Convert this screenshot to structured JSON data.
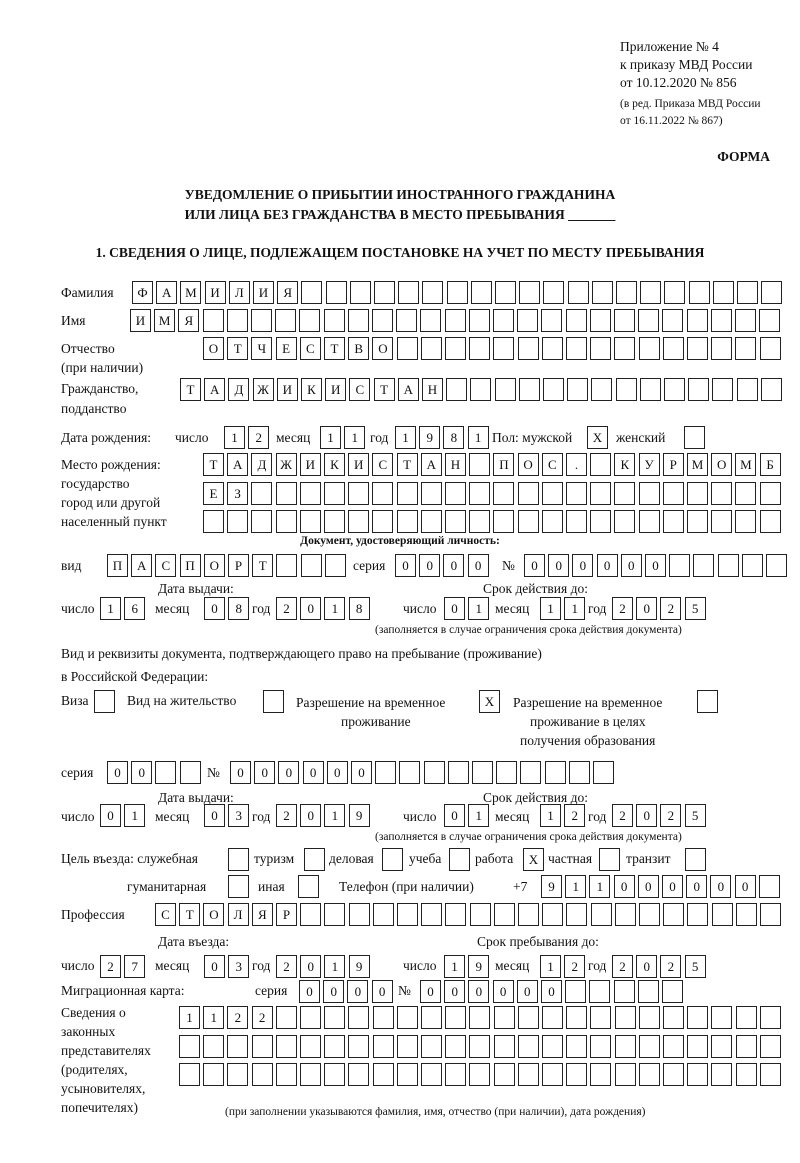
{
  "header": {
    "appendix": [
      "Приложение № 4",
      "к приказу МВД России",
      "от 10.12.2020 № 856"
    ],
    "revision": [
      "(в ред. Приказа МВД России",
      "от 16.11.2022 № 867)"
    ],
    "form_label": "ФОРМА",
    "title_line1": "УВЕДОМЛЕНИЕ О ПРИБЫТИИ ИНОСТРАННОГО ГРАЖДАНИНА",
    "title_line2": "ИЛИ ЛИЦА БЕЗ ГРАЖДАНСТВА В МЕСТО ПРЕБЫВАНИЯ _______"
  },
  "section1": {
    "heading": "1. СВЕДЕНИЯ О ЛИЦЕ, ПОДЛЕЖАЩЕМ ПОСТАНОВКЕ НА УЧЕТ ПО МЕСТУ ПРЕБЫВАНИЯ",
    "labels": {
      "surname": "Фамилия",
      "name": "Имя",
      "patronymic": "Отчество",
      "patronymic_note": "(при наличии)",
      "citizenship": "Гражданство,",
      "citizenship2": "подданство",
      "birth_date": "Дата рождения:",
      "day": "число",
      "month": "месяц",
      "year": "год",
      "sex": "Пол: мужской",
      "female": "женский",
      "birth_place": [
        "Место рождения:",
        "государство",
        "город или другой",
        "населенный пункт"
      ],
      "id_doc": "Документ, удостоверяющий личность:",
      "kind": "вид",
      "series": "серия",
      "number": "№",
      "issue_date": "Дата выдачи:",
      "valid_until": "Срок действия до:",
      "valid_note": "(заполняется в случае ограничения срока действия документа)",
      "stay_doc1": "Вид и реквизиты документа, подтверждающего право на пребывание (проживание)",
      "stay_doc2": "в Российской Федерации:",
      "visa": "Виза",
      "residence": "Вид на жительство",
      "temp_res": [
        "Разрешение на временное",
        "проживание"
      ],
      "temp_res_edu": [
        "Разрешение на временное",
        "проживание в целях",
        "получения образования"
      ],
      "purpose": "Цель въезда: служебная",
      "tourism": "туризм",
      "business": "деловая",
      "study": "учеба",
      "work": "работа",
      "private": "частная",
      "transit": "транзит",
      "humanitarian": "гуманитарная",
      "other": "иная",
      "phone": "Телефон (при наличии)",
      "phone_prefix": "+7",
      "profession": "Профессия",
      "entry_date": "Дата въезда:",
      "stay_until": "Срок пребывания до:",
      "migration_card": "Миграционная карта:",
      "representatives": [
        "Сведения о",
        "законных",
        "представителях",
        "(родителях,",
        "усыновителях,",
        "попечителях)"
      ],
      "rep_note": "(при заполнении указываются фамилия, имя, отчество (при наличии), дата рождения)"
    },
    "values": {
      "surname": "ФАМИЛИЯ",
      "name": "ИМЯ",
      "patronymic": "ОТЧЕСТВО",
      "citizenship": "ТАДЖИКИСТАН",
      "birth_day": "12",
      "birth_month": "11",
      "birth_year": "1981",
      "sex_male": "X",
      "sex_female": "",
      "birth_place_1": "ТАДЖИКИСТАН ПОС. КУРМОМБ",
      "birth_place_2": "ЕЗ",
      "birth_place_3": "",
      "id_kind": "ПАСПОРТ",
      "id_series": "0000",
      "id_number": "000000",
      "id_issue_day": "16",
      "id_issue_month": "08",
      "id_issue_year": "2018",
      "id_valid_day": "01",
      "id_valid_month": "11",
      "id_valid_year": "2025",
      "doc_visa": "",
      "doc_residence": "",
      "doc_temp_res": "X",
      "doc_temp_res_edu": "",
      "doc_series": "00",
      "doc_number": "000000",
      "doc_issue_day": "01",
      "doc_issue_month": "03",
      "doc_issue_year": "2019",
      "doc_valid_day": "01",
      "doc_valid_month": "12",
      "doc_valid_year": "2025",
      "purpose_official": "",
      "purpose_tourism": "",
      "purpose_business": "",
      "purpose_study": "",
      "purpose_work": "X",
      "purpose_private": "",
      "purpose_transit": "",
      "purpose_humanitarian": "",
      "purpose_other": "",
      "phone": "911000000",
      "profession": "СТОЛЯР",
      "entry_day": "27",
      "entry_month": "03",
      "entry_year": "2019",
      "stay_day": "19",
      "stay_month": "12",
      "stay_year": "2025",
      "mc_series": "0000",
      "mc_number": "000000",
      "rep_1": "1122",
      "rep_2": "",
      "rep_3": ""
    }
  }
}
